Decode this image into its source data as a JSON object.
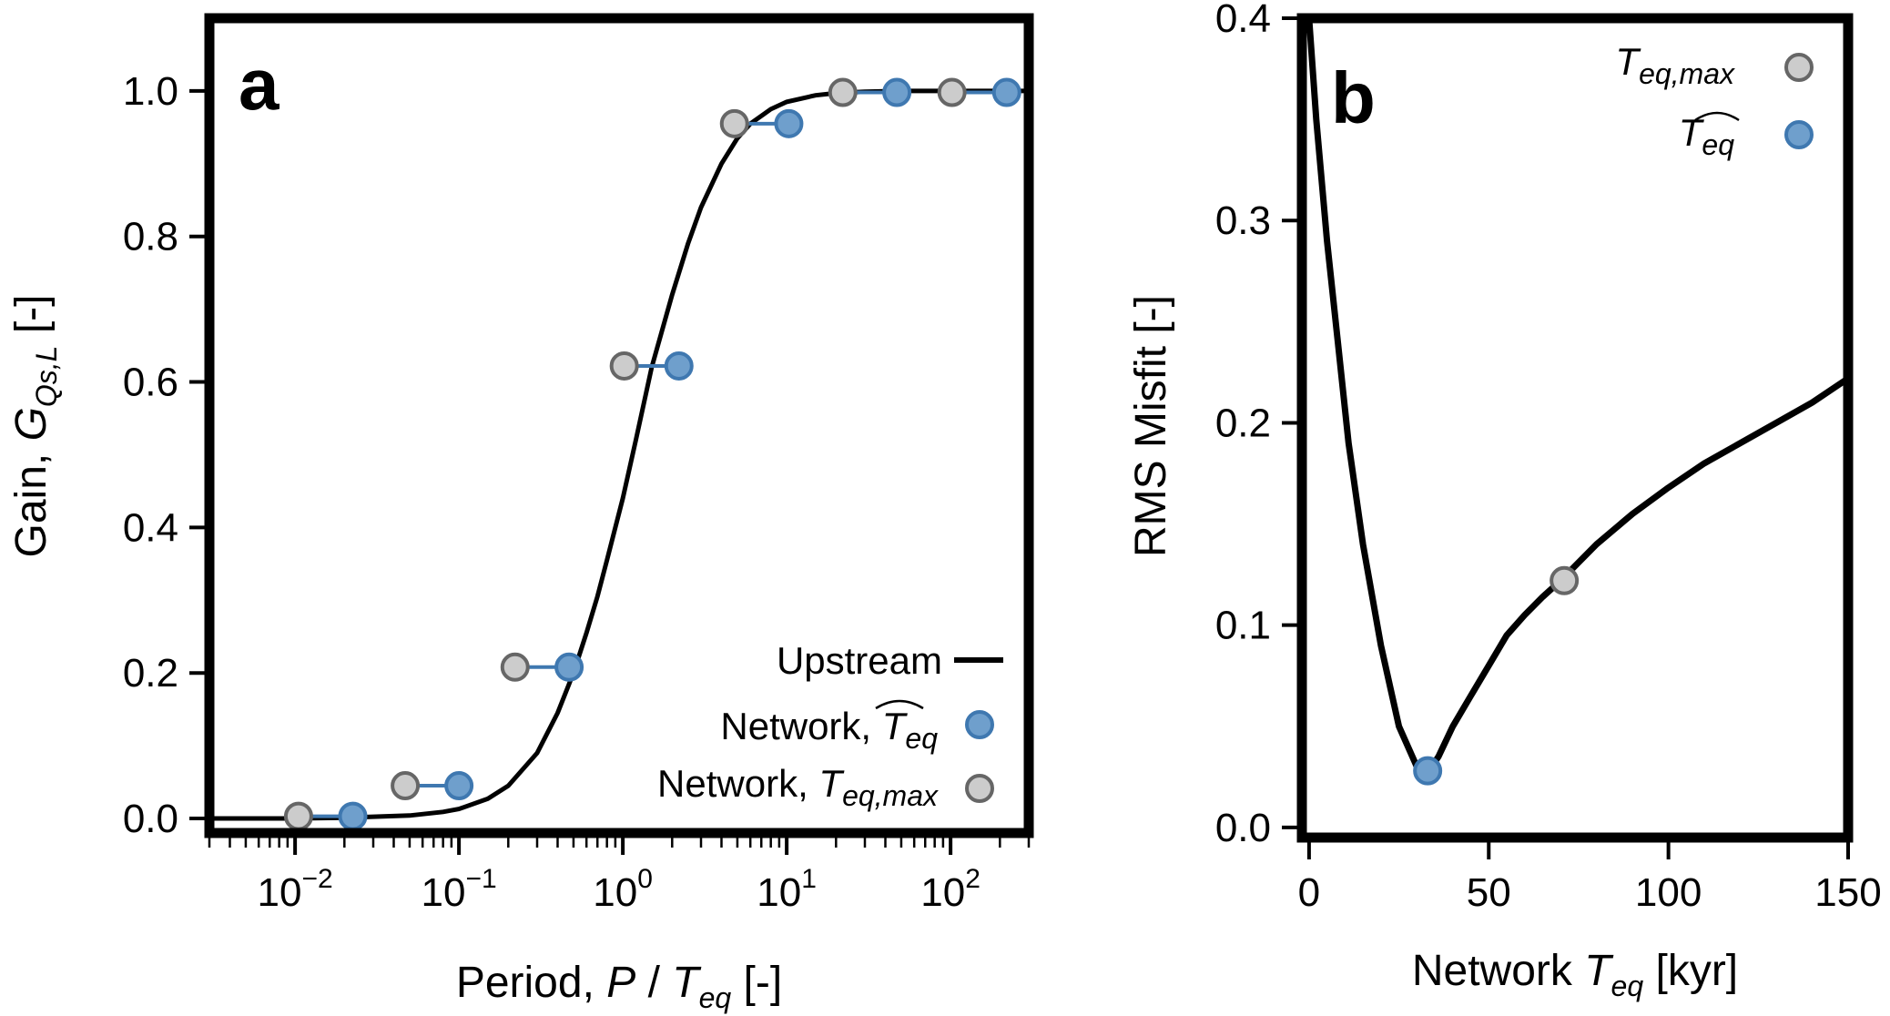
{
  "colors": {
    "network_hat_fill": "#6f9fcc",
    "network_hat_edge": "#3f78b0",
    "network_max_fill": "#cccccc",
    "network_max_edge": "#666666",
    "connector": "#3f78b0",
    "curve": "#000000"
  },
  "chart_data": [
    {
      "type": "line",
      "panel_label": "a",
      "xscale": "log",
      "xlim": [
        0.003,
        300
      ],
      "ylim": [
        -0.02,
        1.1
      ],
      "xlabel": {
        "pre": "Period, ",
        "p": "P",
        "slash": " / ",
        "t": "T",
        "sub": "eq",
        "post": " [-]"
      },
      "ylabel": {
        "pre": "Gain, ",
        "g": "G",
        "sub": "Qs,L",
        "post": " [-]"
      },
      "xticks": [
        {
          "value": 0.01,
          "base": "10",
          "exp": "−2"
        },
        {
          "value": 0.1,
          "base": "10",
          "exp": "−1"
        },
        {
          "value": 1,
          "base": "10",
          "exp": "0"
        },
        {
          "value": 10,
          "base": "10",
          "exp": "1"
        },
        {
          "value": 100,
          "base": "10",
          "exp": "2"
        }
      ],
      "yticks": [
        {
          "value": 0.0,
          "label": "0.0"
        },
        {
          "value": 0.2,
          "label": "0.2"
        },
        {
          "value": 0.4,
          "label": "0.4"
        },
        {
          "value": 0.6,
          "label": "0.6"
        },
        {
          "value": 0.8,
          "label": "0.8"
        },
        {
          "value": 1.0,
          "label": "1.0"
        }
      ],
      "upstream_curve": {
        "x": [
          0.003,
          0.01,
          0.02,
          0.05,
          0.08,
          0.1,
          0.15,
          0.2,
          0.3,
          0.4,
          0.5,
          0.6,
          0.7,
          0.8,
          1.0,
          1.2,
          1.5,
          2.0,
          2.5,
          3.0,
          4.0,
          5.0,
          6.0,
          8.0,
          10,
          15,
          20,
          30,
          50,
          100,
          300
        ],
        "y": [
          0.0,
          0.0,
          0.001,
          0.004,
          0.009,
          0.013,
          0.027,
          0.045,
          0.09,
          0.145,
          0.2,
          0.255,
          0.305,
          0.355,
          0.44,
          0.52,
          0.62,
          0.72,
          0.79,
          0.84,
          0.9,
          0.935,
          0.955,
          0.975,
          0.985,
          0.994,
          0.997,
          0.999,
          1.0,
          1.0,
          1.0
        ]
      },
      "network_pairs": [
        {
          "x_max": 0.0105,
          "x_hat": 0.0225,
          "y": 0.003
        },
        {
          "x_max": 0.047,
          "x_hat": 0.1,
          "y": 0.045
        },
        {
          "x_max": 0.22,
          "x_hat": 0.47,
          "y": 0.208
        },
        {
          "x_max": 1.02,
          "x_hat": 2.2,
          "y": 0.622
        },
        {
          "x_max": 4.8,
          "x_hat": 10.3,
          "y": 0.955
        },
        {
          "x_max": 22,
          "x_hat": 47,
          "y": 0.998
        },
        {
          "x_max": 102,
          "x_hat": 220,
          "y": 0.998
        }
      ],
      "legend": {
        "placement": "lower-right",
        "upstream": "Upstream",
        "hat_prefix": "Network, ",
        "max_prefix": "Network, ",
        "t": "T",
        "hat_sub": "eq",
        "max_sub": "eq,max"
      }
    },
    {
      "type": "line",
      "panel_label": "b",
      "xlim": [
        -2,
        150
      ],
      "ylim": [
        -0.005,
        0.4
      ],
      "xlabel": {
        "pre": "Network ",
        "t": "T",
        "sub": "eq",
        "post": " [kyr]"
      },
      "ylabel": "RMS Misfit [-]",
      "xticks": [
        {
          "value": 0,
          "label": "0"
        },
        {
          "value": 50,
          "label": "50"
        },
        {
          "value": 100,
          "label": "100"
        },
        {
          "value": 150,
          "label": "150"
        }
      ],
      "yticks": [
        {
          "value": 0.0,
          "label": "0.0"
        },
        {
          "value": 0.1,
          "label": "0.1"
        },
        {
          "value": 0.2,
          "label": "0.2"
        },
        {
          "value": 0.3,
          "label": "0.3"
        },
        {
          "value": 0.4,
          "label": "0.4"
        }
      ],
      "misfit_curve": {
        "x": [
          0,
          2,
          5,
          8,
          11,
          15,
          20,
          25,
          30,
          33,
          36,
          40,
          45,
          50,
          55,
          60,
          65,
          70,
          75,
          80,
          90,
          100,
          110,
          120,
          130,
          140,
          150
        ],
        "y": [
          0.4,
          0.35,
          0.29,
          0.24,
          0.19,
          0.14,
          0.09,
          0.05,
          0.03,
          0.027,
          0.035,
          0.05,
          0.065,
          0.08,
          0.095,
          0.105,
          0.114,
          0.122,
          0.131,
          0.14,
          0.155,
          0.168,
          0.18,
          0.19,
          0.2,
          0.21,
          0.222
        ]
      },
      "points": {
        "hat": {
          "x": 33,
          "y": 0.028
        },
        "max": {
          "x": 71,
          "y": 0.122
        }
      },
      "legend": {
        "placement": "top-right",
        "t": "T",
        "max_sub": "eq,max",
        "hat_sub": "eq"
      }
    }
  ]
}
